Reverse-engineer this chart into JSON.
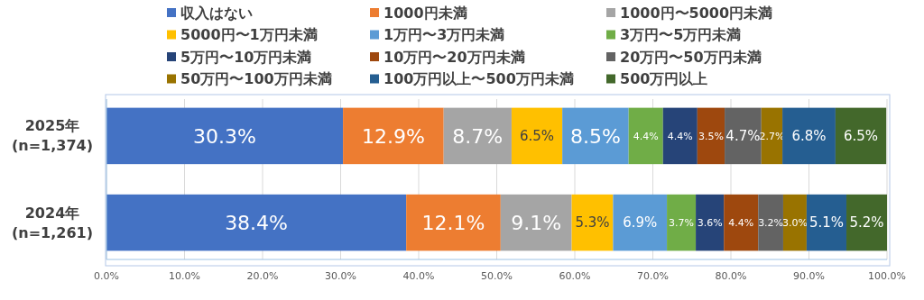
{
  "chart_data": {
    "type": "bar",
    "orientation": "horizontal",
    "stacked": true,
    "legend": "top",
    "grid": "x",
    "categories": [
      "2025年\n(n=1,374)",
      "2024年\n(n=1,261)"
    ],
    "xlim": [
      0,
      100
    ],
    "xticks": [
      {
        "value": 0,
        "label": "0.0%"
      },
      {
        "value": 10,
        "label": "10.0%"
      },
      {
        "value": 20,
        "label": "20.0%"
      },
      {
        "value": 30,
        "label": "30.0%"
      },
      {
        "value": 40,
        "label": "40.0%"
      },
      {
        "value": 50,
        "label": "50.0%"
      },
      {
        "value": 60,
        "label": "60.0%"
      },
      {
        "value": 70,
        "label": "70.0%"
      },
      {
        "value": 80,
        "label": "80.0%"
      },
      {
        "value": 90,
        "label": "90.0%"
      },
      {
        "value": 100,
        "label": "100.0%"
      }
    ],
    "series": [
      {
        "name": "収入はない",
        "color": "#4472c4",
        "values": [
          30.3,
          38.4
        ],
        "value_labels": [
          "30.3%",
          "38.4%"
        ]
      },
      {
        "name": "1000円未満",
        "color": "#ed7d31",
        "values": [
          12.9,
          12.1
        ],
        "value_labels": [
          "12.9%",
          "12.1%"
        ]
      },
      {
        "name": "1000円〜5000円未満",
        "color": "#a5a5a5",
        "values": [
          8.7,
          9.1
        ],
        "value_labels": [
          "8.7%",
          "9.1%"
        ]
      },
      {
        "name": "5000円〜1万円未満",
        "color": "#ffc000",
        "values": [
          6.5,
          5.3
        ],
        "value_labels": [
          "6.5%",
          "5.3%"
        ]
      },
      {
        "name": "1万円〜3万円未満",
        "color": "#5b9bd5",
        "values": [
          8.5,
          6.9
        ],
        "value_labels": [
          "8.5%",
          "6.9%"
        ]
      },
      {
        "name": "3万円〜5万円未満",
        "color": "#70ad47",
        "values": [
          4.4,
          3.7
        ],
        "value_labels": [
          "4.4%",
          "3.7%"
        ]
      },
      {
        "name": "5万円〜10万円未満",
        "color": "#264478",
        "values": [
          4.4,
          3.6
        ],
        "value_labels": [
          "4.4%",
          "3.6%"
        ]
      },
      {
        "name": "10万円〜20万円未満",
        "color": "#9e480e",
        "values": [
          3.5,
          4.4
        ],
        "value_labels": [
          "3.5%",
          "4.4%"
        ]
      },
      {
        "name": "20万円〜50万円未満",
        "color": "#636363",
        "values": [
          4.7,
          3.2
        ],
        "value_labels": [
          "4.7%",
          "3.2%"
        ]
      },
      {
        "name": "50万円〜100万円未満",
        "color": "#997300",
        "values": [
          2.7,
          3.0
        ],
        "value_labels": [
          "2.7%",
          "3.0%"
        ]
      },
      {
        "name": "100万円以上〜500万円未満",
        "color": "#255e91",
        "values": [
          6.8,
          5.1
        ],
        "value_labels": [
          "6.8%",
          "5.1%"
        ]
      },
      {
        "name": "500万円以上",
        "color": "#43682b",
        "values": [
          6.5,
          5.2
        ],
        "value_labels": [
          "6.5%",
          "5.2%"
        ]
      }
    ]
  }
}
